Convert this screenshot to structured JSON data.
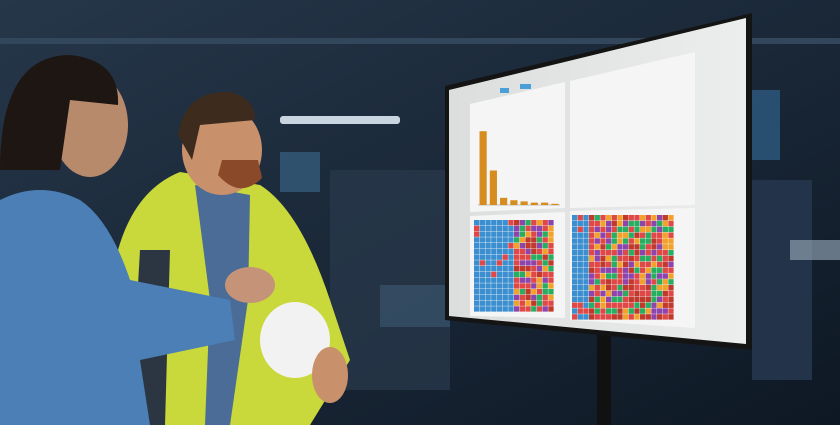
{
  "chart_data": {
    "type": "bar",
    "categories": [
      null,
      null,
      null,
      null,
      null,
      null,
      null,
      null
    ],
    "values": [
      62,
      29,
      6,
      4,
      3,
      2,
      2,
      1
    ],
    "color": "#d68c1f",
    "ylim": [
      0,
      100
    ]
  }
}
